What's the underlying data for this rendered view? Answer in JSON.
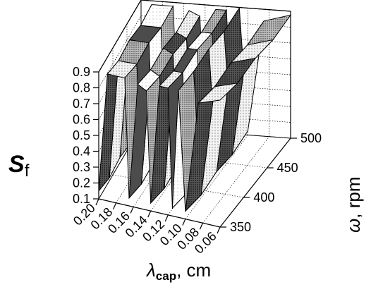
{
  "chart_data": {
    "type": "surface3d",
    "axes": {
      "z": {
        "label_main": "S",
        "label_sub": "f",
        "ticks": [
          "0.1",
          "0.2",
          "0.3",
          "0.4",
          "0.5",
          "0.6",
          "0.7",
          "0.8",
          "0.9"
        ],
        "range": [
          0.1,
          0.9
        ]
      },
      "x": {
        "label_main": "λ",
        "label_sub": "cap",
        "label_suffix": ", cm",
        "ticks": [
          "0.20",
          "0.18",
          "0.16",
          "0.14",
          "0.12",
          "0.10",
          "0.08",
          "0.06"
        ],
        "range": [
          0.2,
          0.06
        ]
      },
      "y": {
        "label_main": "ω",
        "label_suffix": ", rpm",
        "ticks": [
          "350",
          "400",
          "450",
          "500"
        ],
        "range": [
          350,
          500
        ]
      }
    },
    "grid": true,
    "surface_profile": [
      {
        "x": 0.2,
        "z": 0.15
      },
      {
        "x": 0.19,
        "z": 0.9
      },
      {
        "x": 0.17,
        "z": 0.9
      },
      {
        "x": 0.165,
        "z": 0.15
      },
      {
        "x": 0.155,
        "z": 0.88
      },
      {
        "x": 0.145,
        "z": 0.85
      },
      {
        "x": 0.14,
        "z": 0.15
      },
      {
        "x": 0.13,
        "z": 0.9
      },
      {
        "x": 0.12,
        "z": 0.9
      },
      {
        "x": 0.115,
        "z": 0.15
      },
      {
        "x": 0.108,
        "z": 0.92
      },
      {
        "x": 0.1,
        "z": 0.15
      },
      {
        "x": 0.085,
        "z": 0.85
      },
      {
        "x": 0.06,
        "z": 0.9
      }
    ]
  }
}
